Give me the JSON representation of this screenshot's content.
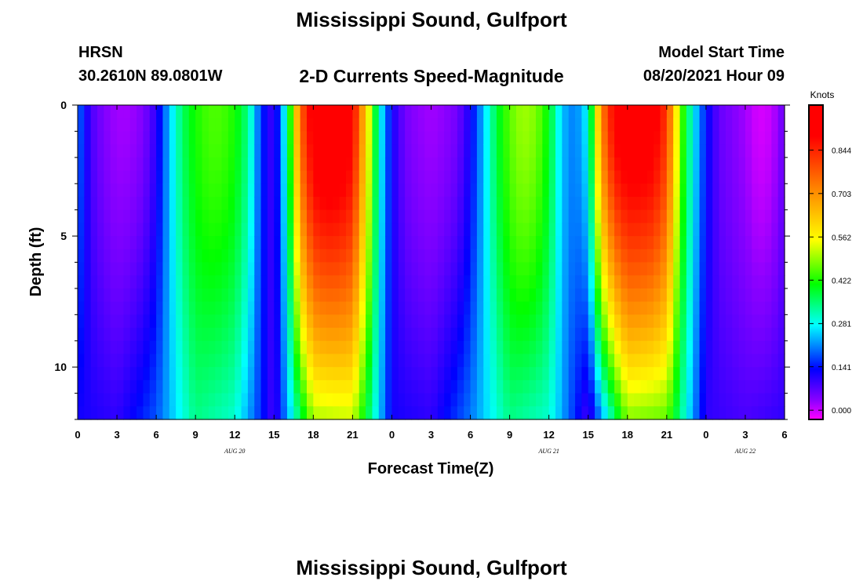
{
  "header": {
    "title": "Mississippi Sound, Gulfport",
    "station_id": "HRSN",
    "station_coords": "30.2610N  89.0801W",
    "subtitle": "2-D Currents Speed-Magnitude",
    "model_start_label": "Model Start Time",
    "model_start_value": "08/20/2021 Hour 09"
  },
  "footer": {
    "title": "Mississippi Sound, Gulfport"
  },
  "chart_data": {
    "type": "heatmap",
    "title": "2-D Currents Speed-Magnitude",
    "xlabel": "Forecast Time(Z)",
    "ylabel": "Depth (ft)",
    "x_range_hours": [
      0,
      54
    ],
    "x_tick_labels": [
      "0",
      "3",
      "6",
      "9",
      "12",
      "15",
      "18",
      "21",
      "0",
      "3",
      "6",
      "9",
      "12",
      "15",
      "18",
      "21",
      "0",
      "3",
      "6"
    ],
    "date_labels": [
      {
        "text": "AUG 20",
        "hour": 12
      },
      {
        "text": "AUG 21",
        "hour": 36
      },
      {
        "text": "AUG 22",
        "hour": 51
      }
    ],
    "y_range_ft": [
      0,
      12
    ],
    "y_ticks": [
      0,
      5,
      10
    ],
    "y_inverted": true,
    "colorbar": {
      "unit": "Knots",
      "range": [
        -0.03,
        0.99
      ],
      "tick_values": [
        0.0,
        0.141,
        0.281,
        0.422,
        0.562,
        0.703,
        0.844
      ],
      "tick_labels": [
        "0.000",
        "0.141",
        "0.281",
        "0.422",
        "0.562",
        "0.703",
        "0.844"
      ],
      "colors": [
        "#ff00ff",
        "#8c00ff",
        "#0000ff",
        "#00ffff",
        "#00ff00",
        "#ffff00",
        "#ff8000",
        "#ff0000"
      ]
    },
    "surface_speed_knots": [
      {
        "hour": 0,
        "value": 0.2
      },
      {
        "hour": 1,
        "value": 0.08
      },
      {
        "hour": 2,
        "value": 0.04
      },
      {
        "hour": 3,
        "value": 0.02
      },
      {
        "hour": 4,
        "value": 0.02
      },
      {
        "hour": 5,
        "value": 0.04
      },
      {
        "hour": 6,
        "value": 0.1
      },
      {
        "hour": 7,
        "value": 0.24
      },
      {
        "hour": 8,
        "value": 0.36
      },
      {
        "hour": 9,
        "value": 0.42
      },
      {
        "hour": 10,
        "value": 0.45
      },
      {
        "hour": 11,
        "value": 0.45
      },
      {
        "hour": 12,
        "value": 0.42
      },
      {
        "hour": 13,
        "value": 0.34
      },
      {
        "hour": 14,
        "value": 0.16
      },
      {
        "hour": 15,
        "value": 0.08
      },
      {
        "hour": 16,
        "value": 0.32
      },
      {
        "hour": 17,
        "value": 0.76
      },
      {
        "hour": 18,
        "value": 0.93
      },
      {
        "hour": 19,
        "value": 0.96
      },
      {
        "hour": 20,
        "value": 0.95
      },
      {
        "hour": 21,
        "value": 0.9
      },
      {
        "hour": 22,
        "value": 0.62
      },
      {
        "hour": 23,
        "value": 0.3
      },
      {
        "hour": 24,
        "value": 0.12
      },
      {
        "hour": 25,
        "value": 0.05
      },
      {
        "hour": 26,
        "value": 0.03
      },
      {
        "hour": 27,
        "value": 0.02
      },
      {
        "hour": 28,
        "value": 0.03
      },
      {
        "hour": 29,
        "value": 0.05
      },
      {
        "hour": 30,
        "value": 0.12
      },
      {
        "hour": 31,
        "value": 0.24
      },
      {
        "hour": 32,
        "value": 0.38
      },
      {
        "hour": 33,
        "value": 0.46
      },
      {
        "hour": 34,
        "value": 0.5
      },
      {
        "hour": 35,
        "value": 0.48
      },
      {
        "hour": 36,
        "value": 0.4
      },
      {
        "hour": 37,
        "value": 0.24
      },
      {
        "hour": 38,
        "value": 0.2
      },
      {
        "hour": 39,
        "value": 0.28
      },
      {
        "hour": 40,
        "value": 0.72
      },
      {
        "hour": 41,
        "value": 0.9
      },
      {
        "hour": 42,
        "value": 0.94
      },
      {
        "hour": 43,
        "value": 0.94
      },
      {
        "hour": 44,
        "value": 0.92
      },
      {
        "hour": 45,
        "value": 0.82
      },
      {
        "hour": 46,
        "value": 0.48
      },
      {
        "hour": 47,
        "value": 0.28
      },
      {
        "hour": 48,
        "value": 0.14
      },
      {
        "hour": 49,
        "value": 0.06
      },
      {
        "hour": 50,
        "value": 0.04
      },
      {
        "hour": 51,
        "value": 0.02
      },
      {
        "hour": 52,
        "value": -0.01
      },
      {
        "hour": 53,
        "value": 0.0
      },
      {
        "hour": 54,
        "value": 0.06
      }
    ],
    "near_bottom_speed_knots": [
      {
        "hour": 0,
        "value": 0.12
      },
      {
        "hour": 3,
        "value": 0.1
      },
      {
        "hour": 6,
        "value": 0.18
      },
      {
        "hour": 9,
        "value": 0.34
      },
      {
        "hour": 12,
        "value": 0.3
      },
      {
        "hour": 15,
        "value": 0.08
      },
      {
        "hour": 18,
        "value": 0.5
      },
      {
        "hour": 21,
        "value": 0.52
      },
      {
        "hour": 24,
        "value": 0.12
      },
      {
        "hour": 27,
        "value": 0.1
      },
      {
        "hour": 30,
        "value": 0.2
      },
      {
        "hour": 33,
        "value": 0.34
      },
      {
        "hour": 36,
        "value": 0.3
      },
      {
        "hour": 39,
        "value": 0.08
      },
      {
        "hour": 42,
        "value": 0.48
      },
      {
        "hour": 45,
        "value": 0.46
      },
      {
        "hour": 48,
        "value": 0.1
      },
      {
        "hour": 51,
        "value": 0.08
      },
      {
        "hour": 54,
        "value": 0.1
      }
    ]
  }
}
